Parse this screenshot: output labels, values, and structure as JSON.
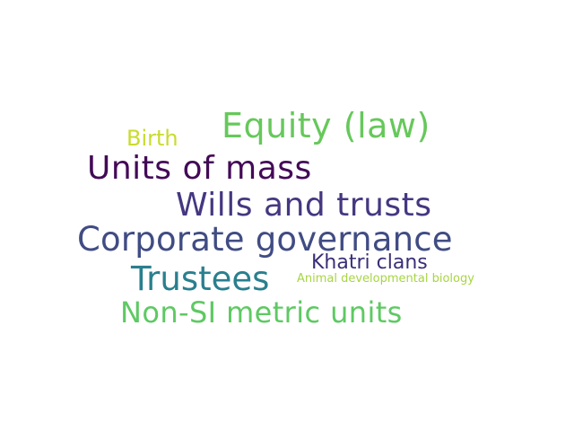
{
  "words": [
    {
      "text": "Equity (law)",
      "color": "#66c85b"
    },
    {
      "text": "Birth",
      "color": "#c9db2e"
    },
    {
      "text": "Units of mass",
      "color": "#430a57"
    },
    {
      "text": "Wills and trusts",
      "color": "#453781"
    },
    {
      "text": "Corporate governance",
      "color": "#404c83"
    },
    {
      "text": "Khatri clans",
      "color": "#3b2e77"
    },
    {
      "text": "Trustees",
      "color": "#2a7f8e"
    },
    {
      "text": "Animal developmental biology",
      "color": "#a7d543"
    },
    {
      "text": "Non-SI metric units",
      "color": "#5ec963"
    }
  ]
}
